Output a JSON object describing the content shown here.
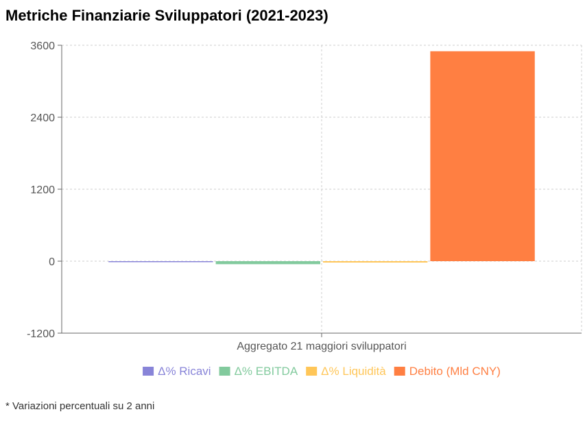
{
  "title": "Metriche Finanziarie Sviluppatori (2021-2023)",
  "footnote": "* Variazioni percentuali su 2 anni",
  "chart_data": {
    "type": "bar",
    "title": "Metriche Finanziarie Sviluppatori (2021-2023)",
    "categories": [
      "Aggregato 21 maggiori sviluppatori"
    ],
    "ylim": [
      -1200,
      3600
    ],
    "yticks": [
      -1200,
      0,
      1200,
      2400,
      3600
    ],
    "ytick_labels": [
      "-1200",
      "0",
      "1200",
      "2400",
      "3600"
    ],
    "grid": true,
    "legend_position": "bottom",
    "series": [
      {
        "name": "Δ% Ricavi",
        "values": [
          -11
        ],
        "color": "#8884d8"
      },
      {
        "name": "Δ% EBITDA",
        "values": [
          -50
        ],
        "color": "#82ca9d"
      },
      {
        "name": "Δ% Liquidità",
        "values": [
          -23
        ],
        "color": "#ffc658"
      },
      {
        "name": "Debito (Mld CNY)",
        "values": [
          3500
        ],
        "color": "#ff7f42"
      }
    ]
  }
}
